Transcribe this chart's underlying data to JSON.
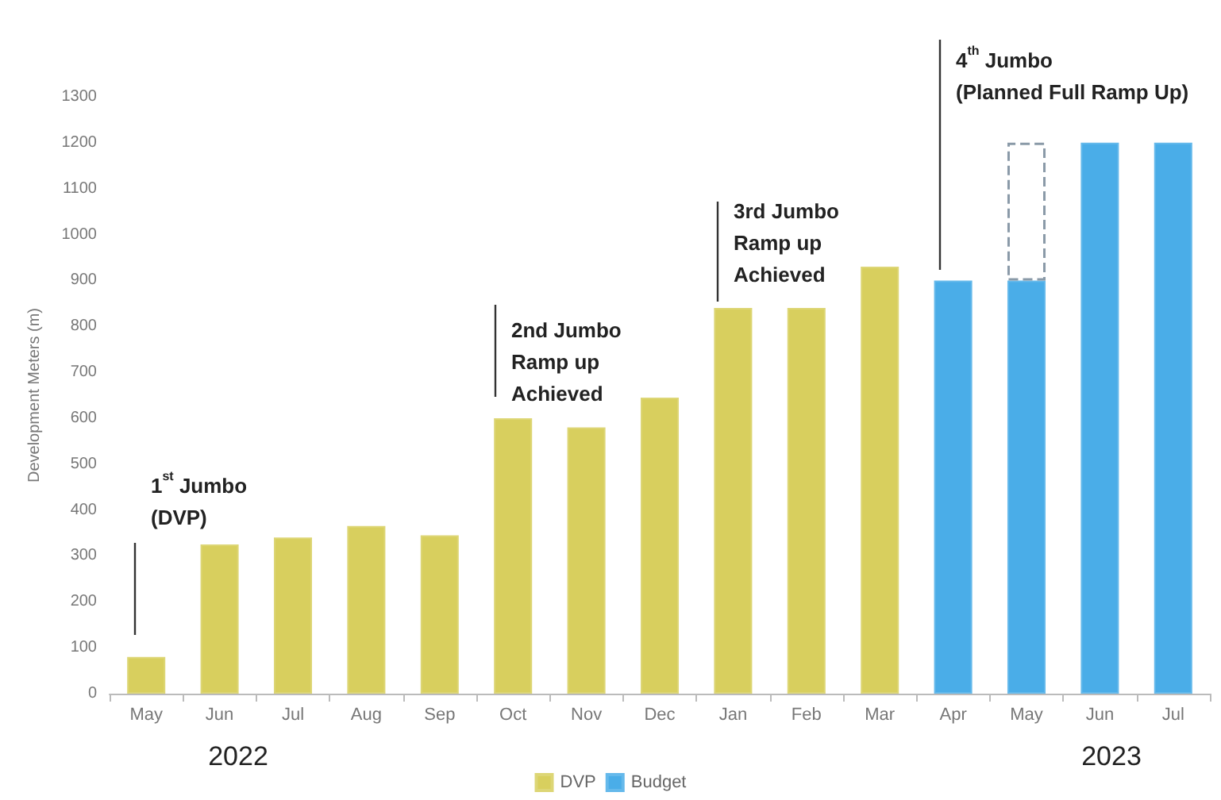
{
  "chart_data": {
    "type": "bar",
    "ylabel": "Development Meters (m)",
    "categories": [
      "May",
      "Jun",
      "Jul",
      "Aug",
      "Sep",
      "Oct",
      "Nov",
      "Dec",
      "Jan",
      "Feb",
      "Mar",
      "Apr",
      "May",
      "Jun",
      "Jul"
    ],
    "series": [
      {
        "name": "DVP",
        "color": "#d8cf5e",
        "values": [
          80,
          325,
          340,
          365,
          345,
          600,
          580,
          645,
          840,
          840,
          930,
          null,
          null,
          null,
          null
        ]
      },
      {
        "name": "Budget",
        "color": "#4aade8",
        "values": [
          null,
          null,
          null,
          null,
          null,
          null,
          null,
          null,
          null,
          null,
          null,
          900,
          900,
          1200,
          1200
        ]
      },
      {
        "color": "#ffffff",
        "line_style": "dashed",
        "values": [
          null,
          null,
          null,
          null,
          null,
          null,
          null,
          null,
          null,
          null,
          null,
          null,
          300,
          null,
          null
        ]
      }
    ],
    "stacked": true,
    "ylim": [
      0,
      1300
    ],
    "yticks": [
      0,
      100,
      200,
      300,
      400,
      500,
      600,
      700,
      800,
      900,
      1000,
      1100,
      1200,
      1300
    ],
    "grid": false,
    "legend": "bottom",
    "annotations": [
      "1$^{st}$ Jumbo\n(DVP)",
      "2nd Jumbo\nRamp up\nAchieved",
      "3rd Jumbo\nRamp up\nAchieved",
      "4$^{th}$ Jumbo\n(Planned Full Ramp Up)",
      "2022",
      "2023"
    ]
  }
}
